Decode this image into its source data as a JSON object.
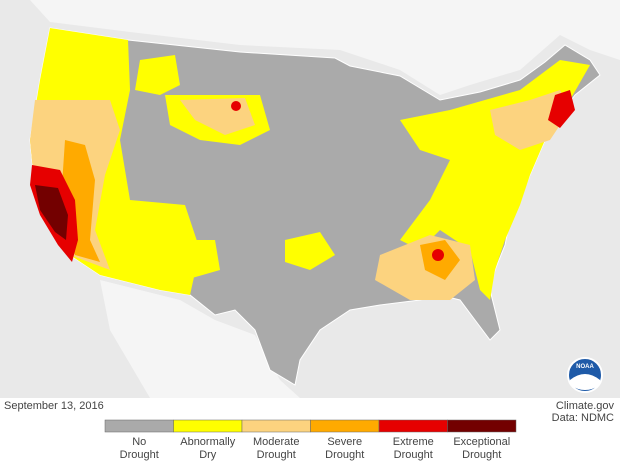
{
  "date": "September 13, 2016",
  "credit": [
    "Climate.gov",
    "Data: NDMC"
  ],
  "logo": "NOAA",
  "legend": [
    {
      "label": [
        "No",
        "Drought"
      ],
      "color": "#aaaaaa"
    },
    {
      "label": [
        "Abnormally",
        "Dry"
      ],
      "color": "#ffff00"
    },
    {
      "label": [
        "Moderate",
        "Drought"
      ],
      "color": "#fcd37f"
    },
    {
      "label": [
        "Severe",
        "Drought"
      ],
      "color": "#ffaa00"
    },
    {
      "label": [
        "Extreme",
        "Drought"
      ],
      "color": "#e60000"
    },
    {
      "label": [
        "Exceptional",
        "Drought"
      ],
      "color": "#730000"
    }
  ]
}
